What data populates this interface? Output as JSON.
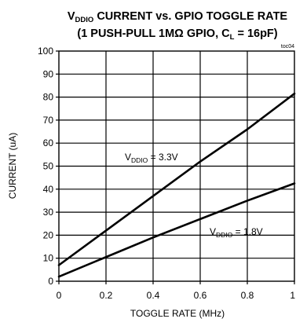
{
  "chart_data": {
    "type": "line",
    "title": {
      "line1": {
        "prefix": "V",
        "prefix_sub": "DDIO",
        "rest": " CURRENT vs. GPIO TOGGLE RATE"
      },
      "line2": {
        "prefix": "(1 PUSH-PULL 1MΩ GPIO, C",
        "sub": "L",
        "rest": " = 16pF)"
      }
    },
    "figure_ref": "toc04",
    "xlabel": "TOGGLE RATE (MHz)",
    "ylabel": "CURRENT (uA)",
    "xlim": [
      0,
      1
    ],
    "ylim": [
      0,
      100
    ],
    "x_ticks": [
      0,
      0.2,
      0.4,
      0.6,
      0.8,
      1
    ],
    "y_ticks": [
      0,
      10,
      20,
      30,
      40,
      50,
      60,
      70,
      80,
      90,
      100
    ],
    "grid": true,
    "series": [
      {
        "label_prefix": "V",
        "label_sub": "DDIO",
        "label_rest": " = 3.3V",
        "x": [
          0,
          0.2,
          0.4,
          0.6,
          0.8,
          1.0
        ],
        "y": [
          7,
          22,
          37,
          52,
          66,
          81.5
        ]
      },
      {
        "label_prefix": "V",
        "label_sub": "DDIO",
        "label_rest": " = 1.8V",
        "x": [
          0,
          0.2,
          0.4,
          0.6,
          0.8,
          1.0
        ],
        "y": [
          2,
          10.5,
          19,
          27,
          35,
          42.5
        ]
      }
    ]
  }
}
